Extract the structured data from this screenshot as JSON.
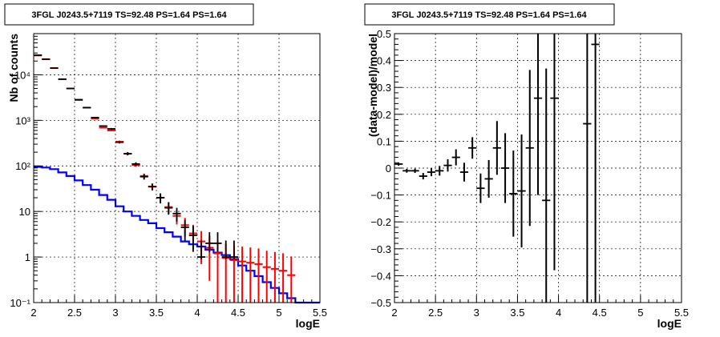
{
  "chart_data": [
    {
      "type": "scatter",
      "title": "3FGL J0243.5+7119 TS=92.48 PS=1.64 PS=1.64",
      "xlabel": "logE",
      "ylabel": "Nb of counts",
      "xlim": [
        2,
        5.5
      ],
      "ylim": [
        0.1,
        80000
      ],
      "yscale": "log",
      "grid": true,
      "x_ticks": [
        "2",
        "2.5",
        "3",
        "3.5",
        "4",
        "4.5",
        "5",
        "5.5"
      ],
      "y_ticks": [
        "10⁻¹",
        "1",
        "10",
        "10²",
        "10³",
        "10⁴"
      ],
      "colors": {
        "data": "#000000",
        "model": "#ff0000",
        "background": "#0000ff"
      },
      "data_points": {
        "x": [
          2.05,
          2.15,
          2.25,
          2.35,
          2.45,
          2.55,
          2.65,
          2.75,
          2.85,
          2.95,
          3.05,
          3.15,
          3.25,
          3.35,
          3.45,
          3.55,
          3.65,
          3.75,
          3.85,
          3.95,
          4.05,
          4.15,
          4.25,
          4.35,
          4.45
        ],
        "y": [
          27000,
          22000,
          14000,
          8000,
          5000,
          2800,
          1900,
          1150,
          750,
          650,
          330,
          185,
          110,
          58,
          35,
          20,
          12,
          9,
          4.5,
          3,
          1,
          2,
          2,
          1,
          1
        ],
        "err_low": [
          26800,
          21800,
          13800,
          7900,
          4950,
          2760,
          1860,
          1120,
          730,
          620,
          310,
          170,
          100,
          50,
          29,
          15,
          8.5,
          6,
          2.3,
          1.3,
          0.9,
          1.3,
          1.3,
          0.9,
          0.9
        ],
        "err_high": [
          27200,
          22200,
          14200,
          8100,
          5050,
          2840,
          1940,
          1180,
          770,
          680,
          350,
          200,
          120,
          66,
          41,
          25,
          16,
          12,
          6.5,
          4.8,
          2.3,
          3.5,
          3.5,
          2.3,
          2.3
        ]
      },
      "model_points": {
        "x": [
          2.05,
          2.15,
          2.25,
          2.35,
          2.45,
          2.55,
          2.65,
          2.75,
          2.85,
          2.95,
          3.05,
          3.15,
          3.25,
          3.35,
          3.45,
          3.55,
          3.65,
          3.75,
          3.85,
          3.95,
          4.05,
          4.15,
          4.25,
          4.35,
          4.45,
          4.55,
          4.65,
          4.75,
          4.85,
          4.95,
          5.05,
          5.15
        ],
        "y": [
          26500,
          22000,
          14000,
          8000,
          5000,
          2850,
          1900,
          1100,
          690,
          600,
          340,
          185,
          105,
          60,
          35,
          20,
          12.5,
          8,
          5,
          3.3,
          2.2,
          1.6,
          1.2,
          0.95,
          0.85,
          0.8,
          0.75,
          0.7,
          0.6,
          0.55,
          0.5,
          0.4
        ],
        "err": [
          160,
          150,
          120,
          90,
          70,
          53,
          44,
          33,
          26,
          24,
          18,
          14,
          10,
          7.7,
          5.9,
          4.5,
          3.5,
          2.8,
          2.2,
          1.8,
          1.5,
          1.3,
          1.1,
          1,
          0.92,
          0.89,
          0.87,
          0.84,
          0.77,
          0.74,
          0.71,
          0.63
        ]
      },
      "background_model": {
        "edges": [
          2.0,
          2.1,
          2.2,
          2.3,
          2.4,
          2.5,
          2.6,
          2.7,
          2.8,
          2.9,
          3.0,
          3.1,
          3.2,
          3.3,
          3.4,
          3.5,
          3.6,
          3.7,
          3.8,
          3.9,
          4.0,
          4.1,
          4.2,
          4.3,
          4.4,
          4.5,
          4.6,
          4.7,
          4.8,
          4.9,
          5.0,
          5.1,
          5.2,
          5.3,
          5.4,
          5.5
        ],
        "values": [
          95,
          92,
          85,
          72,
          60,
          48,
          38,
          30,
          23,
          18,
          13,
          10,
          8,
          6.5,
          5.5,
          4.3,
          3.5,
          2.8,
          2.2,
          1.9,
          1.7,
          1.45,
          1.25,
          1.1,
          0.9,
          0.65,
          0.5,
          0.38,
          0.28,
          0.21,
          0.16,
          0.125,
          0.1,
          0.1,
          0.1
        ]
      }
    },
    {
      "type": "scatter",
      "title": "3FGL J0243.5+7119 TS=92.48 PS=1.64 PS=1.64",
      "xlabel": "logE",
      "ylabel": "(data-model)/model",
      "xlim": [
        2,
        5.5
      ],
      "ylim": [
        -0.5,
        0.5
      ],
      "grid": true,
      "x_ticks": [
        "2",
        "2.5",
        "3",
        "3.5",
        "4",
        "4.5",
        "5",
        "5.5"
      ],
      "y_ticks": [
        "−0.5",
        "−0.4",
        "−0.3",
        "−0.2",
        "−0.1",
        "0",
        "0.1",
        "0.2",
        "0.3",
        "0.4",
        "0.5"
      ],
      "residuals": {
        "x": [
          2.05,
          2.15,
          2.25,
          2.35,
          2.45,
          2.55,
          2.65,
          2.75,
          2.85,
          2.95,
          3.05,
          3.15,
          3.25,
          3.35,
          3.45,
          3.55,
          3.65,
          3.75,
          3.85,
          3.95,
          4.35,
          4.45
        ],
        "y": [
          0.015,
          -0.01,
          -0.01,
          -0.03,
          -0.015,
          -0.01,
          0.01,
          0.04,
          -0.015,
          0.075,
          -0.075,
          -0.04,
          0.075,
          0.0,
          -0.095,
          -0.085,
          0.075,
          0.26,
          -0.12,
          0.26,
          0.165,
          0.46
        ],
        "err": [
          0.006,
          0.007,
          0.008,
          0.012,
          0.015,
          0.018,
          0.023,
          0.03,
          0.035,
          0.04,
          0.055,
          0.07,
          0.1,
          0.13,
          0.16,
          0.21,
          0.29,
          0.36,
          0.49,
          0.64,
          0.9,
          1.0
        ]
      }
    }
  ]
}
